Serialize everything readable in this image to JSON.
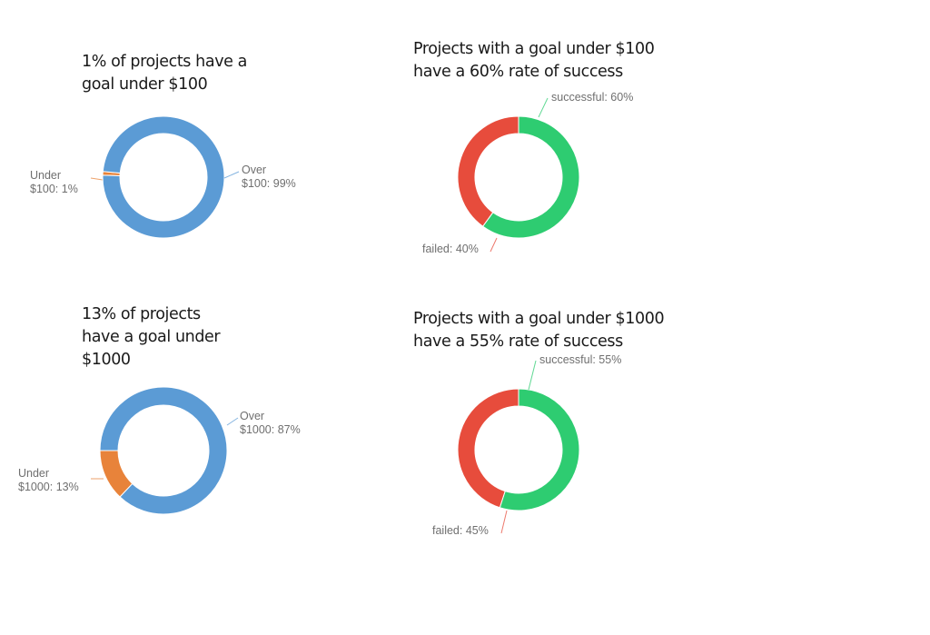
{
  "chart_data": [
    {
      "type": "pie",
      "title": "1% of projects have a goal under $100",
      "donut": true,
      "slices": [
        {
          "name": "Under $100",
          "value": 1,
          "color": "#e8833a",
          "label_lines": [
            "Under",
            "$100: 1%"
          ]
        },
        {
          "name": "Over $100",
          "value": 99,
          "color": "#5b9bd5",
          "label_lines": [
            "Over",
            "$100: 99%"
          ]
        }
      ]
    },
    {
      "type": "pie",
      "title": "Projects with a goal under $100 have a 60% rate of success",
      "donut": true,
      "slices": [
        {
          "name": "successful",
          "value": 60,
          "color": "#2ecc71",
          "label_lines": [
            "successful: 60%"
          ]
        },
        {
          "name": "failed",
          "value": 40,
          "color": "#e74c3c",
          "label_lines": [
            "failed: 40%"
          ]
        }
      ]
    },
    {
      "type": "pie",
      "title": "13% of projects have a goal under $1000",
      "donut": true,
      "slices": [
        {
          "name": "Under $1000",
          "value": 13,
          "color": "#e8833a",
          "label_lines": [
            "Under",
            "$1000: 13%"
          ]
        },
        {
          "name": "Over $1000",
          "value": 87,
          "color": "#5b9bd5",
          "label_lines": [
            "Over",
            "$1000: 87%"
          ]
        }
      ]
    },
    {
      "type": "pie",
      "title": "Projects with a goal under $1000 have a 55% rate of success",
      "donut": true,
      "slices": [
        {
          "name": "successful",
          "value": 55,
          "color": "#2ecc71",
          "label_lines": [
            "successful: 55%"
          ]
        },
        {
          "name": "failed",
          "value": 45,
          "color": "#e74c3c",
          "label_lines": [
            "failed: 45%"
          ]
        }
      ]
    }
  ],
  "titles": {
    "chart0": "1% of projects have a\ngoal under $100",
    "chart1": "Projects with a goal under $100\nhave a 60% rate of success",
    "chart2": "13% of projects\nhave a goal under\n$1000",
    "chart3": "Projects with a goal under $1000\nhave a 55% rate of success"
  }
}
